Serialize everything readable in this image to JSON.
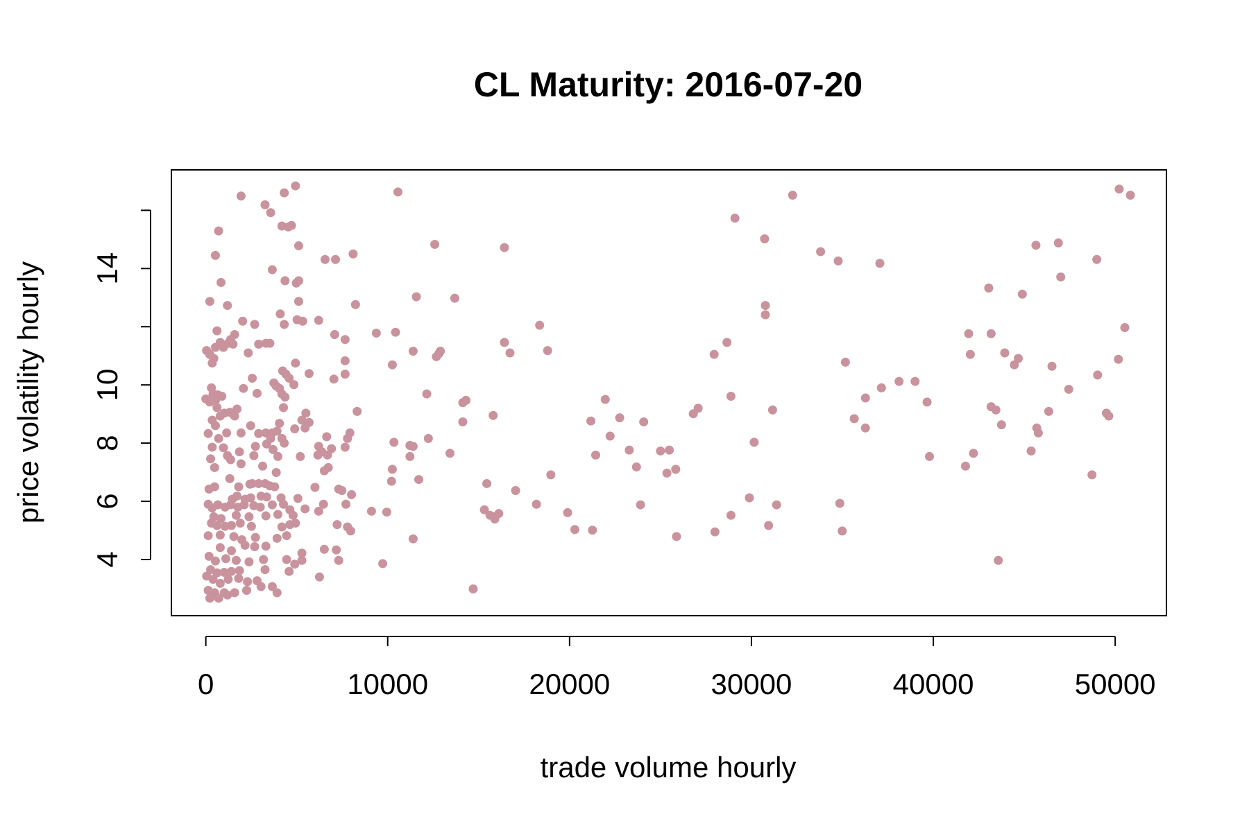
{
  "chart_data": {
    "type": "scatter",
    "title": "CL Maturity: 2016-07-20",
    "x_label": "trade volume hourly",
    "y_label": "price volatility hourly",
    "color": "#c9939d",
    "xlim": [
      -1893,
      52817
    ],
    "ylim": [
      2.07,
      17.39
    ],
    "xticks": [
      0,
      10000,
      20000,
      30000,
      40000,
      50000
    ],
    "yticks": [
      4,
      6,
      8,
      10,
      {
        "value": 12,
        "label": null
      },
      14,
      {
        "value": 16,
        "label": null
      }
    ],
    "x": [
      10563,
      32262,
      50220,
      50836,
      29093,
      30722,
      33803,
      34771,
      37060,
      45642,
      46875,
      48988,
      47007,
      43046,
      44894,
      30766,
      30766,
      50528,
      41945,
      43178,
      28653,
      27949,
      42033,
      43926,
      44674,
      44454,
      50176,
      35167,
      46523,
      49032,
      38116,
      38996,
      37148,
      47447,
      36268,
      28873,
      39656,
      43178,
      43442,
      46347,
      49516,
      49648,
      31162,
      27068,
      26804,
      35652,
      36268,
      43750,
      45686,
      45774,
      30150,
      45378,
      39788,
      42209,
      41769,
      48724,
      29886,
      31382,
      34859,
      28873,
      34991,
      30942,
      27993,
      43574,
      21171,
      21963,
      22755,
      22227,
      21435,
      23283,
      24076,
      23679,
      25000,
      25484,
      25836,
      25352,
      23900,
      25880,
      19894,
      20290,
      21259,
      16417,
      18354,
      18794,
      16417,
      16725,
      18970,
      18178,
      17034,
      15801,
      14129,
      14305,
      14129,
      13424,
      13688,
      12588,
      11576,
      12808,
      12676,
      12896,
      12148,
      12236,
      11399,
      11223,
      11399,
      11223,
      11708,
      10343,
      10255,
      10211,
      10431,
      10255,
      9375,
      9947,
      9111,
      9727,
      11399,
      14701,
      15449,
      15317,
      15625,
      15889,
      16109,
      15889,
      1937,
      4313,
      4930,
      3257,
      3565,
      704,
      4182,
      4534,
      4710,
      5106,
      528,
      6558,
      7130,
      8099,
      3653,
      836,
      4357,
      4974,
      5106,
      220,
      5106,
      1188,
      8231,
      2025,
      2685,
      4093,
      4313,
      5018,
      5326,
      6206,
      616,
      1584,
      1364,
      792,
      528,
      968,
      1232,
      1496,
      2333,
      2905,
      3301,
      3521,
      7086,
      7658,
      44,
      220,
      440,
      352,
      4930,
      2553,
      4225,
      4402,
      4578,
      5678,
      7042,
      7658,
      7658,
      3741,
      3873,
      4049,
      4182,
      4357,
      4842,
      2069,
      2817,
      308,
      396,
      0,
      220,
      528,
      660,
      880,
      616,
      1012,
      1320,
      1716,
      4269,
      5502,
      8319,
      352,
      792,
      528,
      1584,
      2465,
      4049,
      4886,
      5282,
      5678,
      5458,
      132,
      1144,
      1937,
      2905,
      3301,
      3653,
      3917,
      3565,
      4182,
      7922,
      7790,
      6646,
      704,
      352,
      968,
      2729,
      3345,
      4313,
      3697,
      6206,
      6382,
      6910,
      7658,
      264,
      1188,
      1364,
      1849,
      2641,
      3961,
      5194,
      6162,
      6690,
      484,
      1937,
      3125,
      3873,
      6514,
      6734,
      176,
      484,
      1320,
      1805,
      2421,
      2553,
      2905,
      3257,
      3521,
      3785,
      6000,
      7306,
      7482,
      8011,
      1716,
      1452,
      2157,
      2465,
      3037,
      3345,
      4138,
      5062,
      132,
      352,
      660,
      1056,
      1364,
      1761,
      2113,
      2641,
      2993,
      3653,
      4269,
      4622,
      5458,
      6206,
      6470,
      7702,
      440,
      836,
      1673,
      2377,
      3301,
      3961,
      4798,
      308,
      616,
      1056,
      1408,
      1893,
      2509,
      4182,
      4622,
      4930,
      7218,
      7790,
      7966,
      132,
      792,
      1540,
      1981,
      2729,
      3917,
      4445,
      792,
      1408,
      2157,
      2685,
      3301,
      5282,
      6514,
      7174,
      176,
      528,
      1100,
      1673,
      2377,
      3169,
      4445,
      4886,
      5282,
      7306,
      264,
      616,
      1012,
      1408,
      1849,
      3257,
      4578,
      44,
      396,
      792,
      1232,
      1805,
      2289,
      2817,
      3653,
      6250,
      132,
      484,
      1012,
      1584,
      2245,
      3037,
      3917,
      220,
      704,
      1188
    ],
    "values": [
      16.63,
      16.52,
      16.73,
      16.52,
      15.73,
      15.02,
      14.58,
      14.26,
      14.18,
      14.8,
      14.88,
      14.31,
      13.71,
      13.33,
      13.12,
      12.73,
      12.41,
      11.97,
      11.76,
      11.76,
      11.46,
      11.05,
      11.05,
      11.1,
      10.91,
      10.69,
      10.88,
      10.78,
      10.64,
      10.34,
      10.12,
      10.12,
      9.9,
      9.85,
      9.55,
      9.61,
      9.41,
      9.25,
      9.14,
      9.09,
      9.03,
      8.93,
      9.14,
      9.2,
      9.01,
      8.84,
      8.52,
      8.63,
      8.52,
      8.35,
      8.03,
      7.73,
      7.54,
      7.65,
      7.21,
      6.91,
      6.12,
      5.88,
      5.93,
      5.52,
      4.98,
      5.17,
      4.95,
      3.97,
      8.76,
      9.5,
      8.87,
      8.24,
      7.59,
      7.76,
      8.73,
      7.18,
      7.73,
      7.76,
      7.1,
      6.97,
      5.88,
      4.79,
      5.61,
      5.03,
      5.01,
      14.72,
      12.05,
      11.18,
      11.46,
      11.1,
      6.91,
      5.9,
      6.37,
      8.95,
      9.39,
      9.47,
      8.73,
      7.65,
      12.98,
      14.83,
      13.03,
      11.07,
      10.97,
      11.16,
      9.69,
      8.16,
      11.16,
      7.92,
      7.89,
      7.54,
      6.75,
      8.03,
      7.1,
      6.69,
      11.81,
      10.69,
      11.78,
      5.63,
      5.66,
      3.86,
      4.71,
      2.99,
      6.61,
      5.71,
      5.52,
      5.39,
      5.58,
      5.47,
      16.49,
      16.6,
      16.84,
      16.19,
      15.92,
      15.29,
      15.46,
      15.43,
      15.48,
      14.78,
      14.45,
      14.31,
      14.31,
      14.5,
      13.96,
      13.52,
      13.58,
      13.5,
      13.58,
      12.87,
      12.87,
      12.73,
      12.76,
      12.19,
      12.08,
      12.44,
      12.08,
      12.24,
      12.19,
      12.22,
      11.86,
      11.73,
      11.56,
      11.46,
      11.29,
      11.29,
      11.43,
      11.4,
      11.1,
      11.4,
      11.43,
      11.43,
      11.73,
      11.56,
      11.18,
      11.05,
      10.91,
      10.75,
      10.75,
      10.23,
      10.48,
      10.37,
      10.23,
      10.39,
      10.2,
      10.37,
      10.83,
      10.07,
      9.96,
      9.88,
      9.69,
      9.58,
      10.01,
      9.88,
      9.71,
      9.9,
      9.69,
      9.52,
      9.41,
      9.47,
      9.66,
      9.61,
      9.22,
      9.03,
      9.06,
      9.17,
      9.22,
      9.03,
      9.09,
      8.79,
      8.93,
      8.6,
      8.93,
      8.6,
      8.68,
      8.49,
      8.79,
      8.71,
      8.52,
      8.33,
      8.35,
      8.35,
      8.33,
      8.35,
      8.35,
      8.41,
      8.16,
      8.16,
      8.35,
      8.16,
      8.22,
      8.16,
      7.86,
      7.84,
      7.89,
      7.97,
      8.0,
      7.78,
      7.89,
      7.7,
      7.81,
      7.86,
      7.46,
      7.57,
      7.43,
      7.7,
      7.57,
      7.54,
      7.54,
      7.59,
      7.59,
      7.16,
      7.29,
      7.21,
      6.99,
      7.05,
      7.16,
      6.42,
      6.5,
      6.78,
      6.5,
      6.59,
      6.61,
      6.61,
      6.61,
      6.53,
      6.5,
      6.48,
      6.42,
      6.37,
      6.23,
      6.18,
      6.07,
      6.07,
      6.12,
      6.18,
      6.15,
      6.12,
      6.1,
      5.9,
      5.77,
      5.88,
      5.8,
      5.88,
      5.8,
      5.88,
      5.85,
      5.8,
      5.88,
      5.9,
      5.71,
      5.74,
      5.66,
      5.9,
      5.9,
      5.47,
      5.41,
      5.52,
      5.47,
      5.5,
      5.55,
      5.52,
      5.25,
      5.17,
      5.14,
      5.17,
      5.25,
      5.14,
      5.12,
      5.2,
      5.25,
      5.2,
      5.12,
      4.98,
      4.82,
      4.84,
      4.79,
      4.68,
      4.76,
      4.73,
      4.82,
      4.41,
      4.3,
      4.49,
      4.44,
      4.46,
      4.22,
      4.35,
      4.33,
      4.11,
      3.95,
      4.03,
      3.97,
      3.92,
      4.0,
      4.0,
      3.84,
      3.97,
      3.97,
      3.65,
      3.54,
      3.56,
      3.59,
      3.62,
      3.65,
      3.59,
      3.43,
      3.32,
      3.18,
      3.32,
      3.35,
      3.24,
      3.27,
      3.07,
      3.4,
      2.94,
      2.86,
      2.86,
      2.86,
      2.94,
      3.07,
      2.86,
      2.67,
      2.67,
      2.78
    ]
  }
}
